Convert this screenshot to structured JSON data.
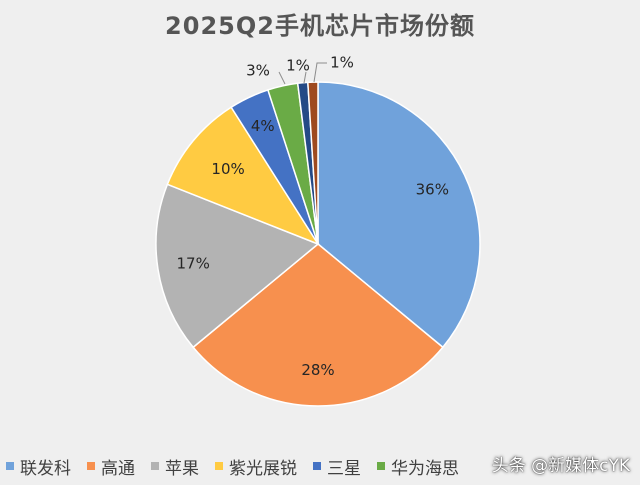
{
  "chart_data": {
    "type": "pie",
    "title": "2025Q2手机芯片市场份额",
    "unit": "%",
    "slices": [
      {
        "name": "联发科",
        "value": 36,
        "label": "36%",
        "color": "#70a2db"
      },
      {
        "name": "高通",
        "value": 28,
        "label": "28%",
        "color": "#f7904e"
      },
      {
        "name": "苹果",
        "value": 17,
        "label": "17%",
        "color": "#b3b3b3"
      },
      {
        "name": "紫光展锐",
        "value": 10,
        "label": "10%",
        "color": "#ffcb42"
      },
      {
        "name": "三星",
        "value": 4,
        "label": "4%",
        "color": "#4472c4"
      },
      {
        "name": "华为海思",
        "value": 3,
        "label": "3%",
        "color": "#6aab46"
      },
      {
        "name": "",
        "value": 1,
        "label": "1%",
        "color": "#244a86"
      },
      {
        "name": "",
        "value": 1,
        "label": "1%",
        "color": "#9e4a1f"
      }
    ],
    "legend": {
      "position": "bottom"
    }
  },
  "watermark": "头条 @新媒体cYK"
}
